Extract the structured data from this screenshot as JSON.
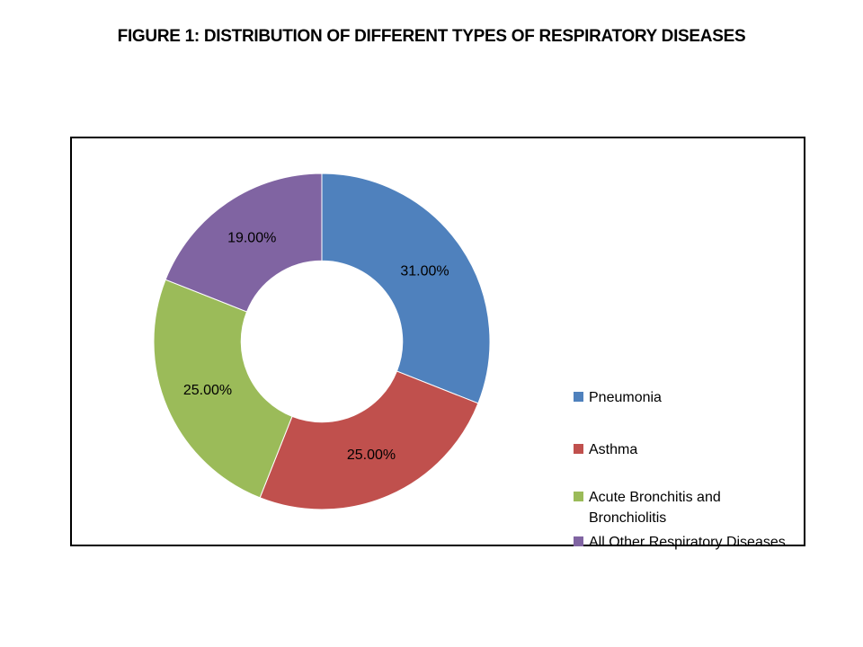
{
  "chart_data": {
    "type": "pie",
    "subtype": "donut",
    "hole_ratio": 0.48,
    "start_angle_deg": 0,
    "direction": "clockwise",
    "legend_position": "right",
    "data_labels": "percentage",
    "title": "FIGURE 1:  DISTRIBUTION OF DIFFERENT TYPES OF RESPIRATORY DISEASES",
    "slices": [
      {
        "label": "Pneumonia",
        "value": 31,
        "display": "31.00%",
        "color": "#4F81BD"
      },
      {
        "label": "Asthma",
        "value": 25,
        "display": "25.00%",
        "color": "#C0504D"
      },
      {
        "label": "Acute Bronchitis and Bronchiolitis",
        "value": 25,
        "display": "25.00%",
        "color": "#9BBB59"
      },
      {
        "label": "All Other Respiratory Diseases",
        "value": 19,
        "display": "19.00%",
        "color": "#8064A2"
      }
    ]
  }
}
